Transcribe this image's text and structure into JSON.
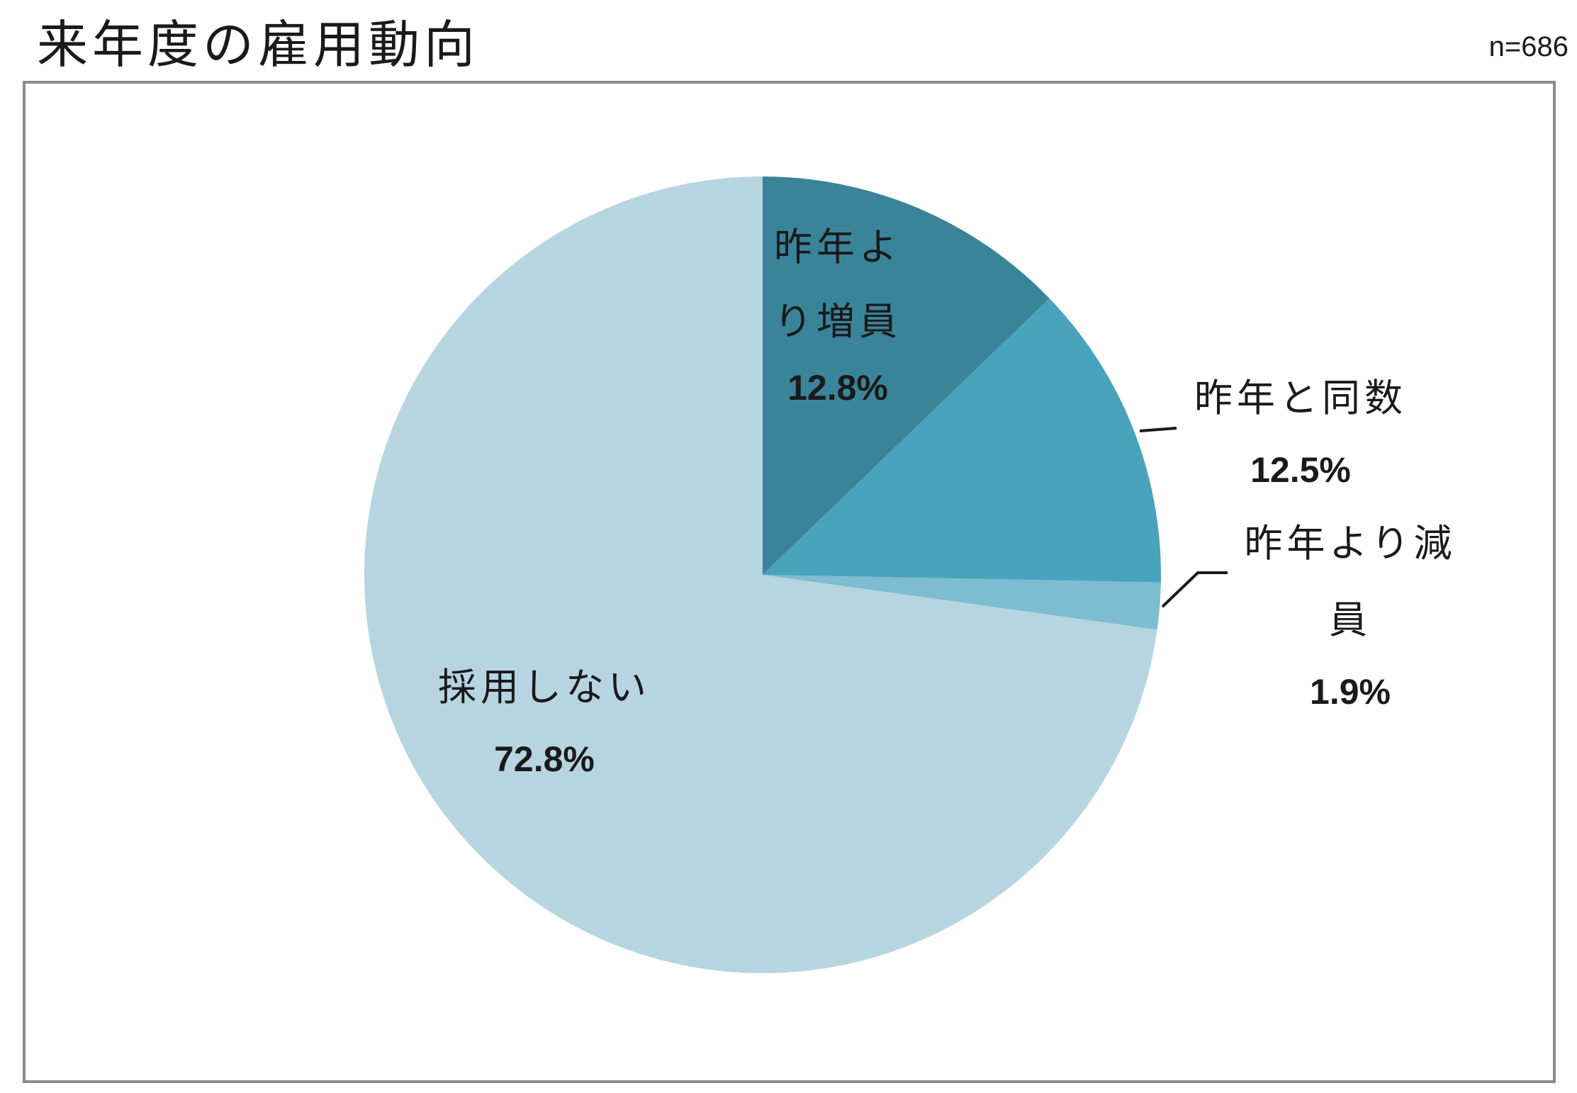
{
  "title": "来年度の雇用動向",
  "sample_size": "n=686",
  "chart_data": {
    "type": "pie",
    "title": "来年度の雇用動向",
    "start_angle_deg": 0,
    "direction": "clockwise",
    "slices": [
      {
        "label_lines": [
          "昨年よ",
          "り増員"
        ],
        "label": "昨年より増員",
        "value": 12.8,
        "value_label": "12.8%",
        "color": "#3a8499"
      },
      {
        "label_lines": [
          "昨年と同数"
        ],
        "label": "昨年と同数",
        "value": 12.5,
        "value_label": "12.5%",
        "color": "#4aa3bd"
      },
      {
        "label_lines": [
          "昨年より減",
          "員"
        ],
        "label": "昨年より減員",
        "value": 1.9,
        "value_label": "1.9%",
        "color": "#7dbcd1"
      },
      {
        "label_lines": [
          "採用しない"
        ],
        "label": "採用しない",
        "value": 72.8,
        "value_label": "72.8%",
        "color": "#b6d5e0"
      }
    ],
    "legend": "none",
    "annotation": "n=686"
  }
}
